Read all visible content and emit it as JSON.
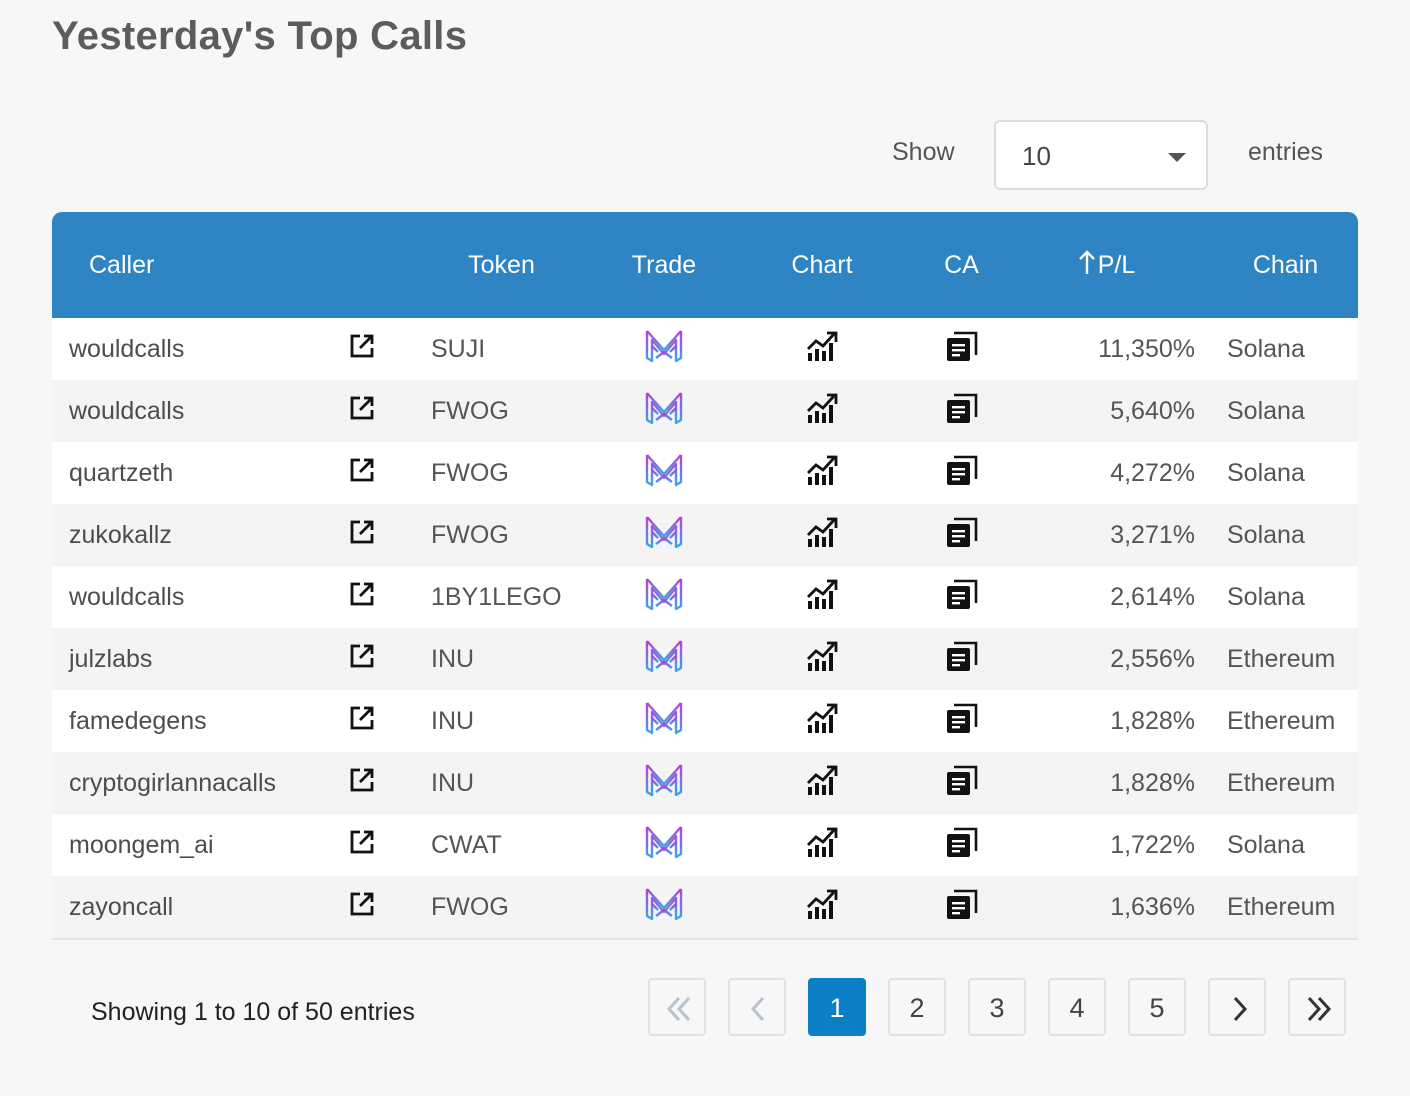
{
  "page": {
    "title": "Yesterday's Top Calls"
  },
  "length": {
    "show_label": "Show",
    "value": "10",
    "entries_label": "entries"
  },
  "table": {
    "headers": {
      "caller": "Caller",
      "token": "Token",
      "trade": "Trade",
      "chart": "Chart",
      "ca": "CA",
      "pl": "P/L",
      "chain": "Chain"
    },
    "sort": {
      "column": "P/L",
      "direction": "ascending-arrow-shown"
    },
    "rows": [
      {
        "caller": "wouldcalls",
        "token": "SUJI",
        "pl": "11,350%",
        "chain": "Solana"
      },
      {
        "caller": "wouldcalls",
        "token": "FWOG",
        "pl": "5,640%",
        "chain": "Solana"
      },
      {
        "caller": "quartzeth",
        "token": "FWOG",
        "pl": "4,272%",
        "chain": "Solana"
      },
      {
        "caller": "zukokallz",
        "token": "FWOG",
        "pl": "3,271%",
        "chain": "Solana"
      },
      {
        "caller": "wouldcalls",
        "token": "1BY1LEGO",
        "pl": "2,614%",
        "chain": "Solana"
      },
      {
        "caller": "julzlabs",
        "token": "INU",
        "pl": "2,556%",
        "chain": "Ethereum"
      },
      {
        "caller": "famedegens",
        "token": "INU",
        "pl": "1,828%",
        "chain": "Ethereum"
      },
      {
        "caller": "cryptogirlannacalls",
        "token": "INU",
        "pl": "1,828%",
        "chain": "Ethereum"
      },
      {
        "caller": "moongem_ai",
        "token": "CWAT",
        "pl": "1,722%",
        "chain": "Solana"
      },
      {
        "caller": "zayoncall",
        "token": "FWOG",
        "pl": "1,636%",
        "chain": "Ethereum"
      }
    ],
    "row_icons": {
      "external": "external-link-icon",
      "trade": "trade-logo-icon",
      "chart": "chart-trend-icon",
      "ca": "copy-icon"
    }
  },
  "footer": {
    "info": "Showing 1 to 10 of 50 entries",
    "pages": [
      "1",
      "2",
      "3",
      "4",
      "5"
    ],
    "current_page": "1"
  },
  "colors": {
    "header": "#2f84c3",
    "active_page": "#0a7fc6",
    "trade_gradient_top": "#c23bd6",
    "trade_gradient_bottom": "#3aa6e8"
  }
}
